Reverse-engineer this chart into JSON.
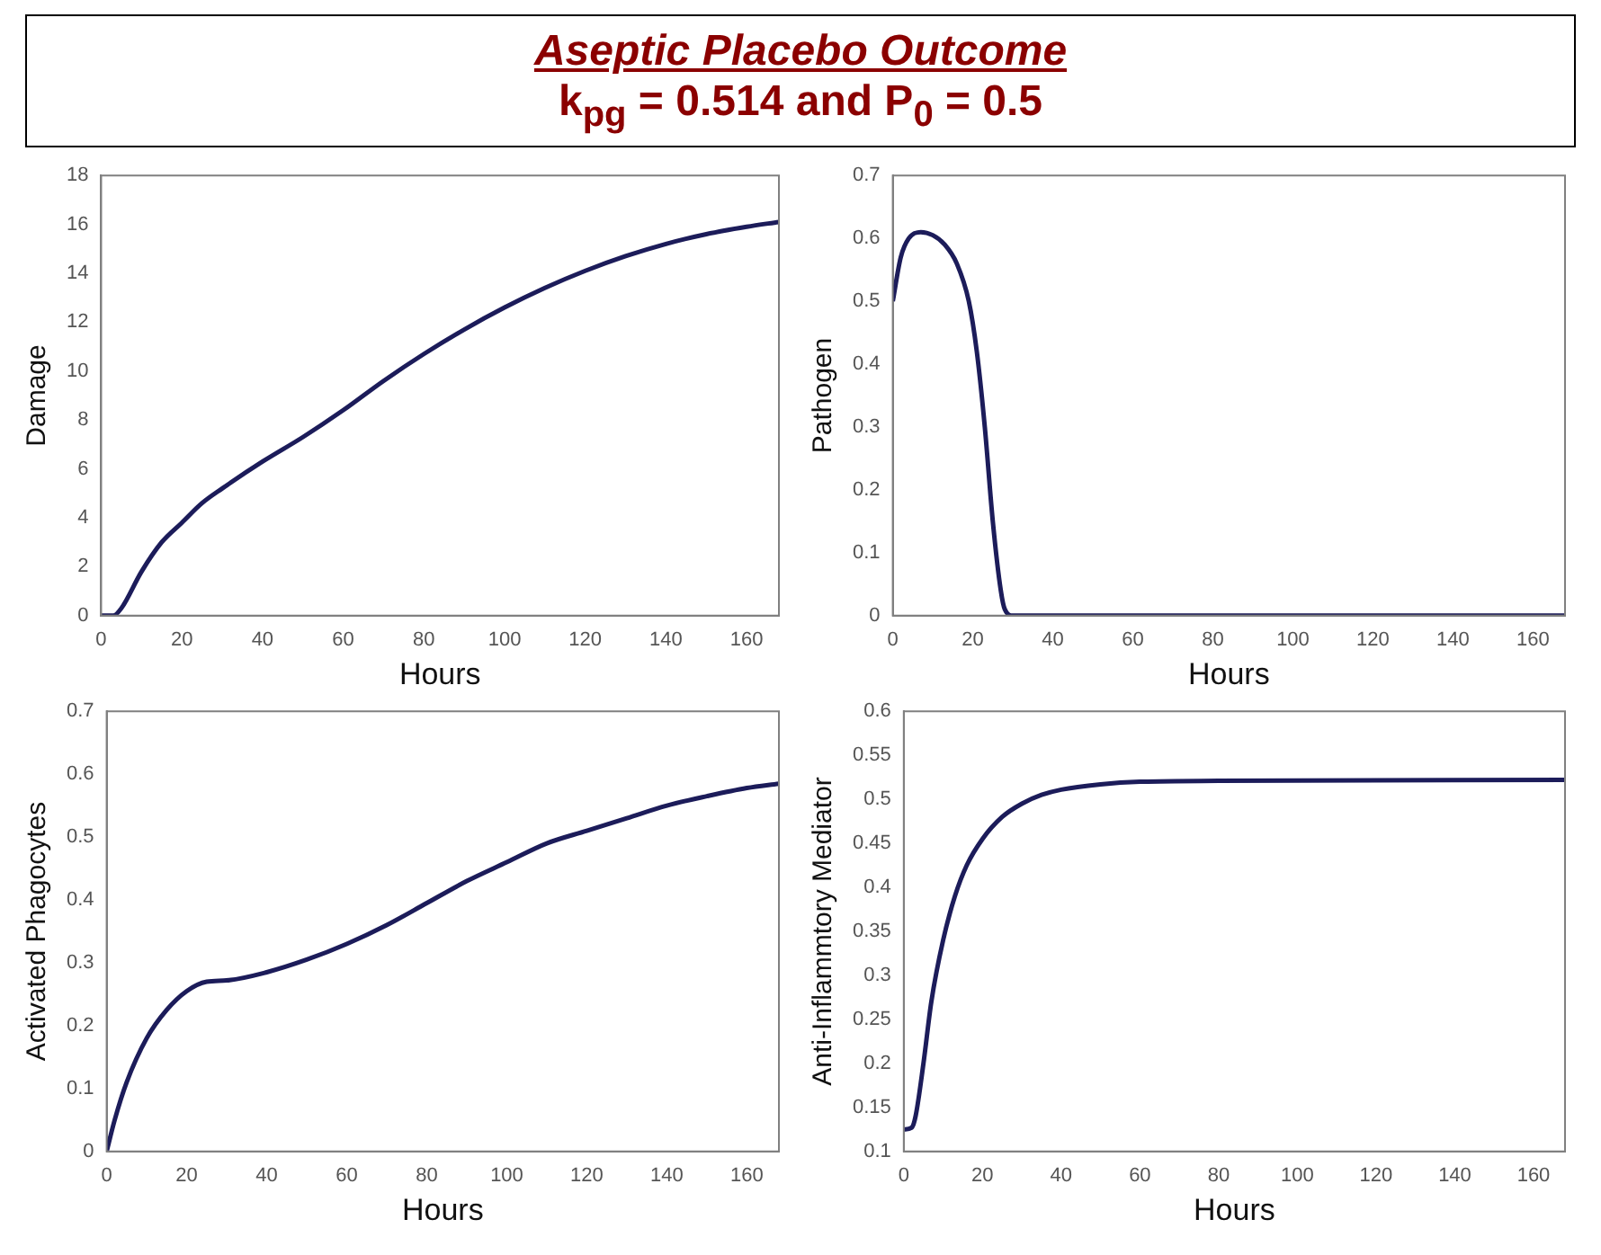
{
  "chart_data": [
    {
      "type": "other",
      "title": "Aseptic Placebo Outcome",
      "subtitle": "k$_{pg}$ = 0.514 and P$_{0}$ = 0.5"
    },
    {
      "type": "line",
      "xlabel": "Hours",
      "ylabel": "Damage",
      "color": "#1c1c5a",
      "marker": "none",
      "xlim": [
        0,
        168
      ],
      "xticks": [
        0,
        20,
        40,
        60,
        80,
        100,
        120,
        140,
        160
      ],
      "ylim": [
        0,
        18
      ],
      "yticks": [
        0,
        2,
        4,
        6,
        8,
        10,
        12,
        14,
        16,
        18
      ],
      "x": [
        0,
        3,
        5,
        10,
        15,
        20,
        25,
        30,
        40,
        50,
        60,
        70,
        80,
        90,
        100,
        110,
        120,
        130,
        140,
        150,
        160,
        168
      ],
      "values": [
        0,
        0,
        0.3,
        1.8,
        3,
        3.8,
        4.6,
        5.2,
        6.3,
        7.3,
        8.4,
        9.6,
        10.7,
        11.7,
        12.6,
        13.4,
        14.1,
        14.7,
        15.2,
        15.6,
        15.9,
        16.1
      ]
    },
    {
      "type": "line",
      "xlabel": "Hours",
      "ylabel": "Pathogen",
      "color": "#1c1c5a",
      "marker": "none",
      "xlim": [
        0,
        168
      ],
      "xticks": [
        0,
        20,
        40,
        60,
        80,
        100,
        120,
        140,
        160
      ],
      "ylim": [
        0,
        0.7
      ],
      "yticks": [
        0,
        0.1,
        0.2,
        0.3,
        0.4,
        0.5,
        0.6,
        0.7
      ],
      "x": [
        0,
        2,
        4,
        7,
        10,
        13,
        16,
        19,
        21,
        23,
        25,
        27,
        28,
        30,
        60,
        168
      ],
      "values": [
        0.5,
        0.57,
        0.6,
        0.61,
        0.605,
        0.59,
        0.56,
        0.5,
        0.42,
        0.3,
        0.15,
        0.04,
        0.01,
        0,
        0,
        0
      ]
    },
    {
      "type": "line",
      "xlabel": "Hours",
      "ylabel": "Activated Phagocytes",
      "color": "#1c1c5a",
      "marker": "none",
      "xlim": [
        0,
        168
      ],
      "xticks": [
        0,
        20,
        40,
        60,
        80,
        100,
        120,
        140,
        160
      ],
      "ylim": [
        0,
        0.7
      ],
      "yticks": [
        0,
        0.1,
        0.2,
        0.3,
        0.4,
        0.5,
        0.6,
        0.7
      ],
      "x": [
        0,
        2,
        5,
        10,
        15,
        20,
        25,
        30,
        40,
        50,
        60,
        70,
        80,
        90,
        100,
        110,
        120,
        130,
        140,
        150,
        160,
        168
      ],
      "values": [
        0,
        0.05,
        0.11,
        0.18,
        0.225,
        0.255,
        0.27,
        0.272,
        0.285,
        0.305,
        0.33,
        0.36,
        0.395,
        0.43,
        0.46,
        0.49,
        0.51,
        0.53,
        0.55,
        0.565,
        0.578,
        0.585
      ]
    },
    {
      "type": "line",
      "xlabel": "Hours",
      "ylabel": "Anti-Inflammtory Mediator",
      "color": "#1c1c5a",
      "marker": "none",
      "xlim": [
        0,
        168
      ],
      "xticks": [
        0,
        20,
        40,
        60,
        80,
        100,
        120,
        140,
        160
      ],
      "ylim": [
        0.1,
        0.6
      ],
      "yticks": [
        0.1,
        0.15,
        0.2,
        0.25,
        0.3,
        0.35,
        0.4,
        0.45,
        0.5,
        0.55,
        0.6
      ],
      "x": [
        0,
        2,
        3,
        5,
        7,
        10,
        13,
        16,
        20,
        25,
        30,
        35,
        40,
        50,
        60,
        80,
        168
      ],
      "values": [
        0.125,
        0.127,
        0.14,
        0.2,
        0.27,
        0.34,
        0.39,
        0.425,
        0.455,
        0.48,
        0.495,
        0.505,
        0.511,
        0.517,
        0.52,
        0.521,
        0.522
      ]
    }
  ]
}
